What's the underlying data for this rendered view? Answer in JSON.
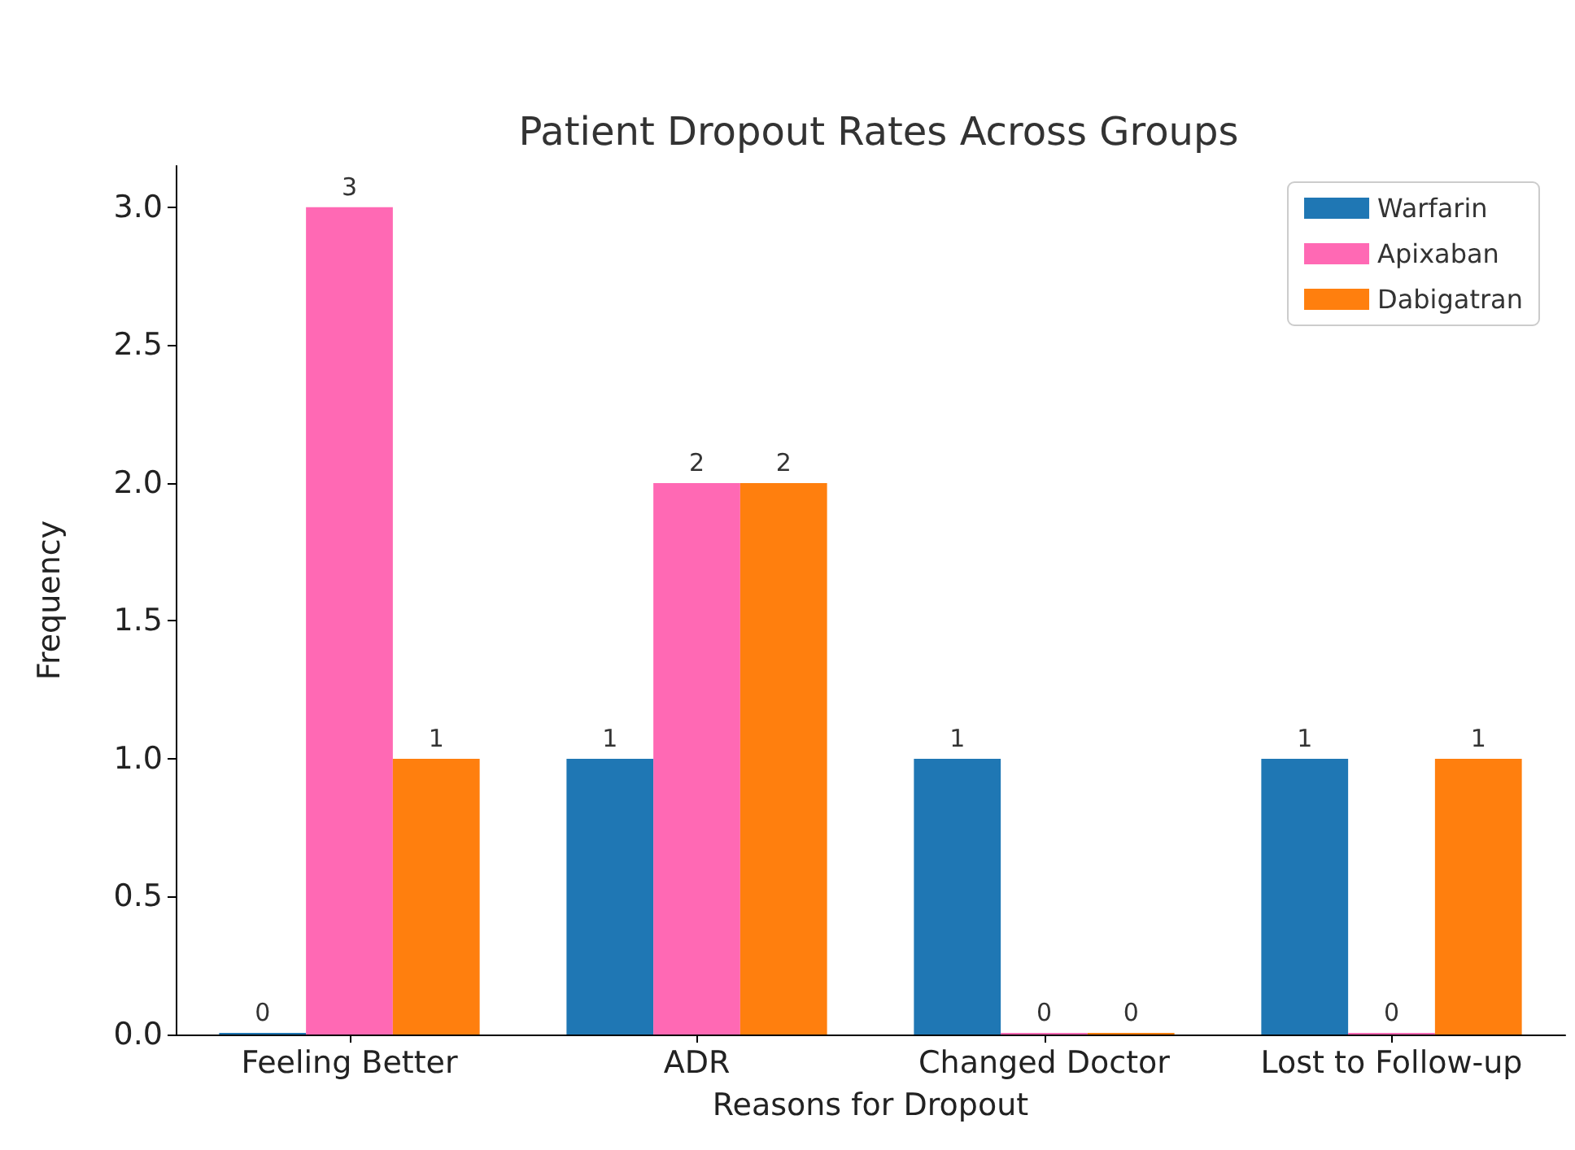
{
  "chart_data": {
    "type": "bar",
    "title": "Patient Dropout Rates Across Groups",
    "xlabel": "Reasons for Dropout",
    "ylabel": "Frequency",
    "categories": [
      "Feeling Better",
      "ADR",
      "Changed Doctor",
      "Lost to Follow-up"
    ],
    "series": [
      {
        "name": "Warfarin",
        "color": "#1f77b4",
        "values": [
          0,
          1,
          1,
          1
        ]
      },
      {
        "name": "Apixaban",
        "color": "#ff69b4",
        "values": [
          3,
          2,
          0,
          0
        ]
      },
      {
        "name": "Dabigatran",
        "color": "#ff7f0e",
        "values": [
          1,
          2,
          0,
          1
        ]
      }
    ],
    "ylim": [
      0,
      3.15
    ],
    "yticks": [
      {
        "value": 0,
        "label": "0.0"
      },
      {
        "value": 0.5,
        "label": "0.5"
      },
      {
        "value": 1,
        "label": "1.0"
      },
      {
        "value": 1.5,
        "label": "1.5"
      },
      {
        "value": 2,
        "label": "2.0"
      },
      {
        "value": 2.5,
        "label": "2.5"
      },
      {
        "value": 3,
        "label": "3.0"
      }
    ],
    "data_labels": true,
    "legend": "top right",
    "grid": false
  }
}
